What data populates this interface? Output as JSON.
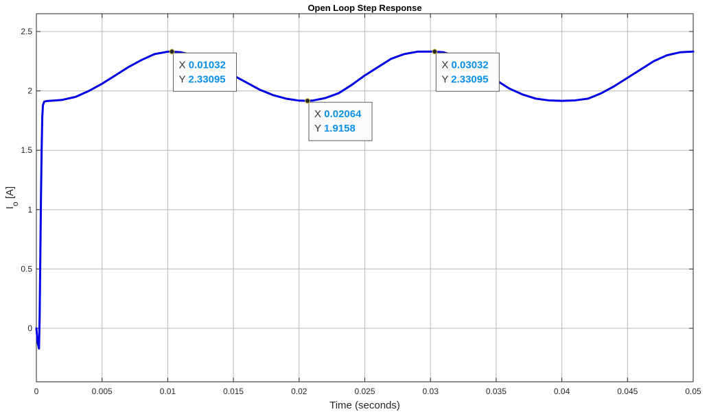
{
  "chart_data": {
    "type": "line",
    "title": "Open Loop Step Response",
    "xlabel": "Time (seconds)",
    "ylabel_main": "I",
    "ylabel_sub": "o",
    "ylabel_unit": " [A]",
    "xlim": [
      0,
      0.05
    ],
    "ylim": [
      -0.45,
      2.65
    ],
    "xticks": [
      0,
      0.005,
      0.01,
      0.015,
      0.02,
      0.025,
      0.03,
      0.035,
      0.04,
      0.045,
      0.05
    ],
    "xtick_labels": [
      "0",
      "0.005",
      "0.01",
      "0.015",
      "0.02",
      "0.025",
      "0.03",
      "0.035",
      "0.04",
      "0.045",
      "0.05"
    ],
    "yticks": [
      0,
      0.5,
      1,
      1.5,
      2,
      2.5
    ],
    "ytick_labels": [
      "0",
      "0.5",
      "1",
      "1.5",
      "2",
      "2.5"
    ],
    "grid": true,
    "series": [
      {
        "color": "#0000e6",
        "x": [
          0,
          0.0001,
          0.0002,
          0.00025,
          0.0003,
          0.00035,
          0.0004,
          0.00045,
          0.0005,
          0.0006,
          0.0008,
          0.001,
          0.0015,
          0.002,
          0.003,
          0.004,
          0.005,
          0.006,
          0.007,
          0.008,
          0.009,
          0.01,
          0.01032,
          0.011,
          0.012,
          0.013,
          0.014,
          0.015,
          0.016,
          0.017,
          0.018,
          0.019,
          0.02,
          0.02064,
          0.021,
          0.022,
          0.023,
          0.024,
          0.025,
          0.026,
          0.027,
          0.028,
          0.029,
          0.03,
          0.03032,
          0.031,
          0.032,
          0.033,
          0.034,
          0.035,
          0.036,
          0.037,
          0.038,
          0.039,
          0.04,
          0.041,
          0.042,
          0.043,
          0.044,
          0.045,
          0.046,
          0.047,
          0.048,
          0.049,
          0.05
        ],
        "y": [
          0,
          -0.12,
          -0.17,
          0.1,
          0.6,
          1.1,
          1.5,
          1.78,
          1.88,
          1.91,
          1.915,
          1.916,
          1.92,
          1.925,
          1.95,
          2.0,
          2.06,
          2.13,
          2.2,
          2.26,
          2.31,
          2.33,
          2.331,
          2.325,
          2.3,
          2.25,
          2.2,
          2.13,
          2.07,
          2.01,
          1.965,
          1.935,
          1.918,
          1.916,
          1.918,
          1.94,
          1.98,
          2.05,
          2.13,
          2.2,
          2.27,
          2.31,
          2.33,
          2.331,
          2.331,
          2.325,
          2.29,
          2.23,
          2.16,
          2.09,
          2.02,
          1.97,
          1.935,
          1.92,
          1.916,
          1.92,
          1.935,
          1.98,
          2.04,
          2.11,
          2.18,
          2.25,
          2.3,
          2.325,
          2.331
        ]
      }
    ],
    "datatips": [
      {
        "x": 0.01032,
        "y": 2.33095,
        "x_label": "X",
        "y_label": "Y",
        "x_text": "0.01032",
        "y_text": "2.33095"
      },
      {
        "x": 0.02064,
        "y": 1.9158,
        "x_label": "X",
        "y_label": "Y",
        "x_text": "0.02064",
        "y_text": "1.9158"
      },
      {
        "x": 0.03032,
        "y": 2.33095,
        "x_label": "X",
        "y_label": "Y",
        "x_text": "0.03032",
        "y_text": "2.33095"
      }
    ]
  }
}
